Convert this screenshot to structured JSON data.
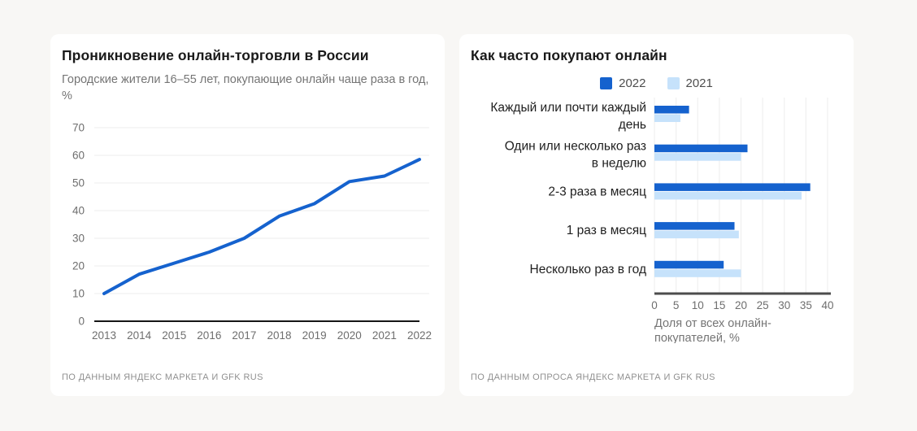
{
  "page": {
    "background": "#f8f7f5",
    "card_background": "#ffffff"
  },
  "colors": {
    "accent_dark_blue": "#1562ce",
    "accent_light_blue": "#c6e2fb",
    "gridline": "#ececec",
    "bar_gridline": "#f0f0f0",
    "line_axis": "#161616",
    "bar_axis": "#4c4c4c",
    "text_primary": "#1a1a1a",
    "text_secondary": "#757575",
    "text_footer": "#909090"
  },
  "left_card": {
    "title": "Проникновение онлайн-торговли в России",
    "subtitle": "Городские жители 16–55 лет, покупающие онлайн чаще раза в год, %",
    "footer": "ПО ДАННЫМ ЯНДЕКС МАРКЕТА И GFK RUS"
  },
  "right_card": {
    "title": "Как часто покупают онлайн",
    "legend": [
      {
        "label": "2022",
        "color": "#1562ce"
      },
      {
        "label": "2021",
        "color": "#c6e2fb"
      }
    ],
    "xlabel_lines": [
      "Доля от всех онлайн-",
      "покупателей, %"
    ],
    "footer": "ПО ДАННЫМ ОПРОСА ЯНДЕКС МАРКЕТА И GFK RUS"
  },
  "chart_data": [
    {
      "type": "line",
      "title": "Проникновение онлайн-торговли в России",
      "subtitle": "Городские жители 16–55 лет, покупающие онлайн чаще раза в год, %",
      "x": [
        "2013",
        "2014",
        "2015",
        "2016",
        "2017",
        "2018",
        "2019",
        "2020",
        "2021",
        "2022"
      ],
      "values": [
        10,
        17,
        21,
        25,
        30,
        38,
        42.5,
        50.5,
        52.5,
        58.5
      ],
      "xlabel": "",
      "ylabel": "%",
      "ylim": [
        0,
        70
      ],
      "yticks": [
        0,
        10,
        20,
        30,
        40,
        50,
        60,
        70
      ],
      "grid": "horizontal",
      "legend_position": "none",
      "line_color": "#1562ce"
    },
    {
      "type": "bar",
      "orientation": "horizontal",
      "title": "Как часто покупают онлайн",
      "categories": [
        "Каждый или почти каждый день",
        "Один или несколько раз в неделю",
        "2-3 раза в месяц",
        "1 раз в месяц",
        "Несколько раз в год"
      ],
      "category_lines": [
        [
          "Каждый или почти каждый",
          "день"
        ],
        [
          "Один или несколько раз",
          "в неделю"
        ],
        [
          "2-3 раза в месяц"
        ],
        [
          "1 раз в месяц"
        ],
        [
          "Несколько раз в год"
        ]
      ],
      "series": [
        {
          "name": "2022",
          "color": "#1562ce",
          "values": [
            8,
            21.5,
            36,
            18.5,
            16
          ]
        },
        {
          "name": "2021",
          "color": "#c6e2fb",
          "values": [
            6,
            20,
            34,
            19.5,
            20
          ]
        }
      ],
      "xlabel": "Доля от всех онлайн-покупателей, %",
      "xlim": [
        0,
        40
      ],
      "xticks": [
        0,
        5,
        10,
        15,
        20,
        25,
        30,
        35,
        40
      ],
      "grid": "vertical",
      "legend_position": "top"
    }
  ]
}
